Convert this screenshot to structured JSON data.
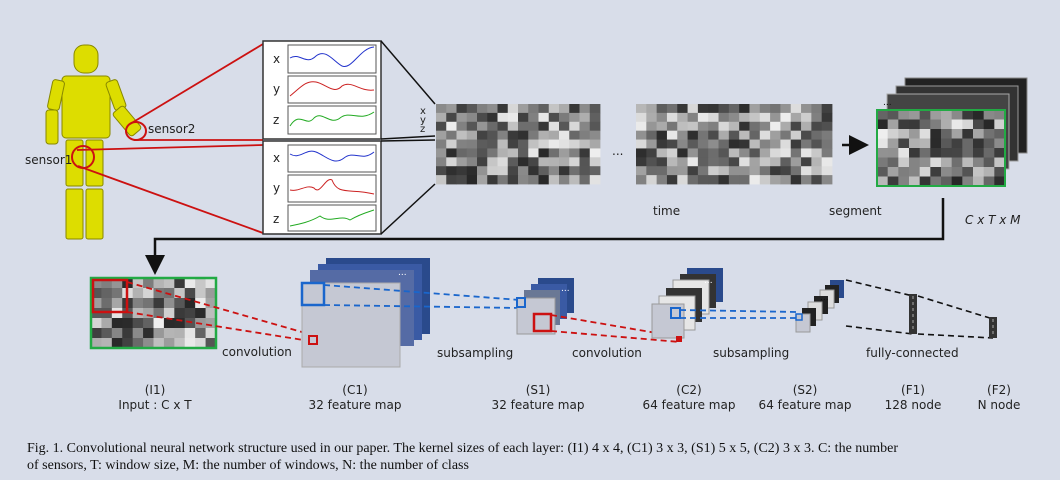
{
  "figure": {
    "sensor1_label": "sensor1",
    "sensor2_label": "sensor2",
    "axis_x": "x",
    "axis_y": "y",
    "axis_z": "z",
    "xyz_label": "xyz",
    "ellipsis": "...",
    "time_label": "time",
    "segment_label": "segment",
    "segment_dims": "C x T x M",
    "convolution_1": "convolution",
    "subsampling_1": "subsampling",
    "convolution_2": "convolution",
    "subsampling_2": "subsampling",
    "fully_connected": "fully-connected",
    "layers": [
      {
        "id": "(I1)",
        "desc": "Input : C x T"
      },
      {
        "id": "(C1)",
        "desc": "32 feature map"
      },
      {
        "id": "(S1)",
        "desc": "32 feature map"
      },
      {
        "id": "(C2)",
        "desc": "64 feature map"
      },
      {
        "id": "(S2)",
        "desc": "64 feature map"
      },
      {
        "id": "(F1)",
        "desc": "128 node"
      },
      {
        "id": "(F2)",
        "desc": "N node"
      }
    ],
    "colors": {
      "figure_body": "#dddd00",
      "link_red": "#cc1111",
      "signal_x": "#2233cc",
      "signal_y": "#cc2222",
      "signal_z": "#22aa22",
      "highlight_green": "#22aa44",
      "kernel_blue": "#1a66cc",
      "stack_navy": "#2a4a8c"
    }
  },
  "caption": {
    "line1": "Fig. 1.   Convolutional neural network structure used in our paper. The kernel sizes of each layer: (I1) 4 x 4, (C1) 3 x 3, (S1) 5 x 5, (C2) 3 x 3. C: the number",
    "line2": "of sensors, T: window size, M: the number of windows, N: the number of class"
  }
}
